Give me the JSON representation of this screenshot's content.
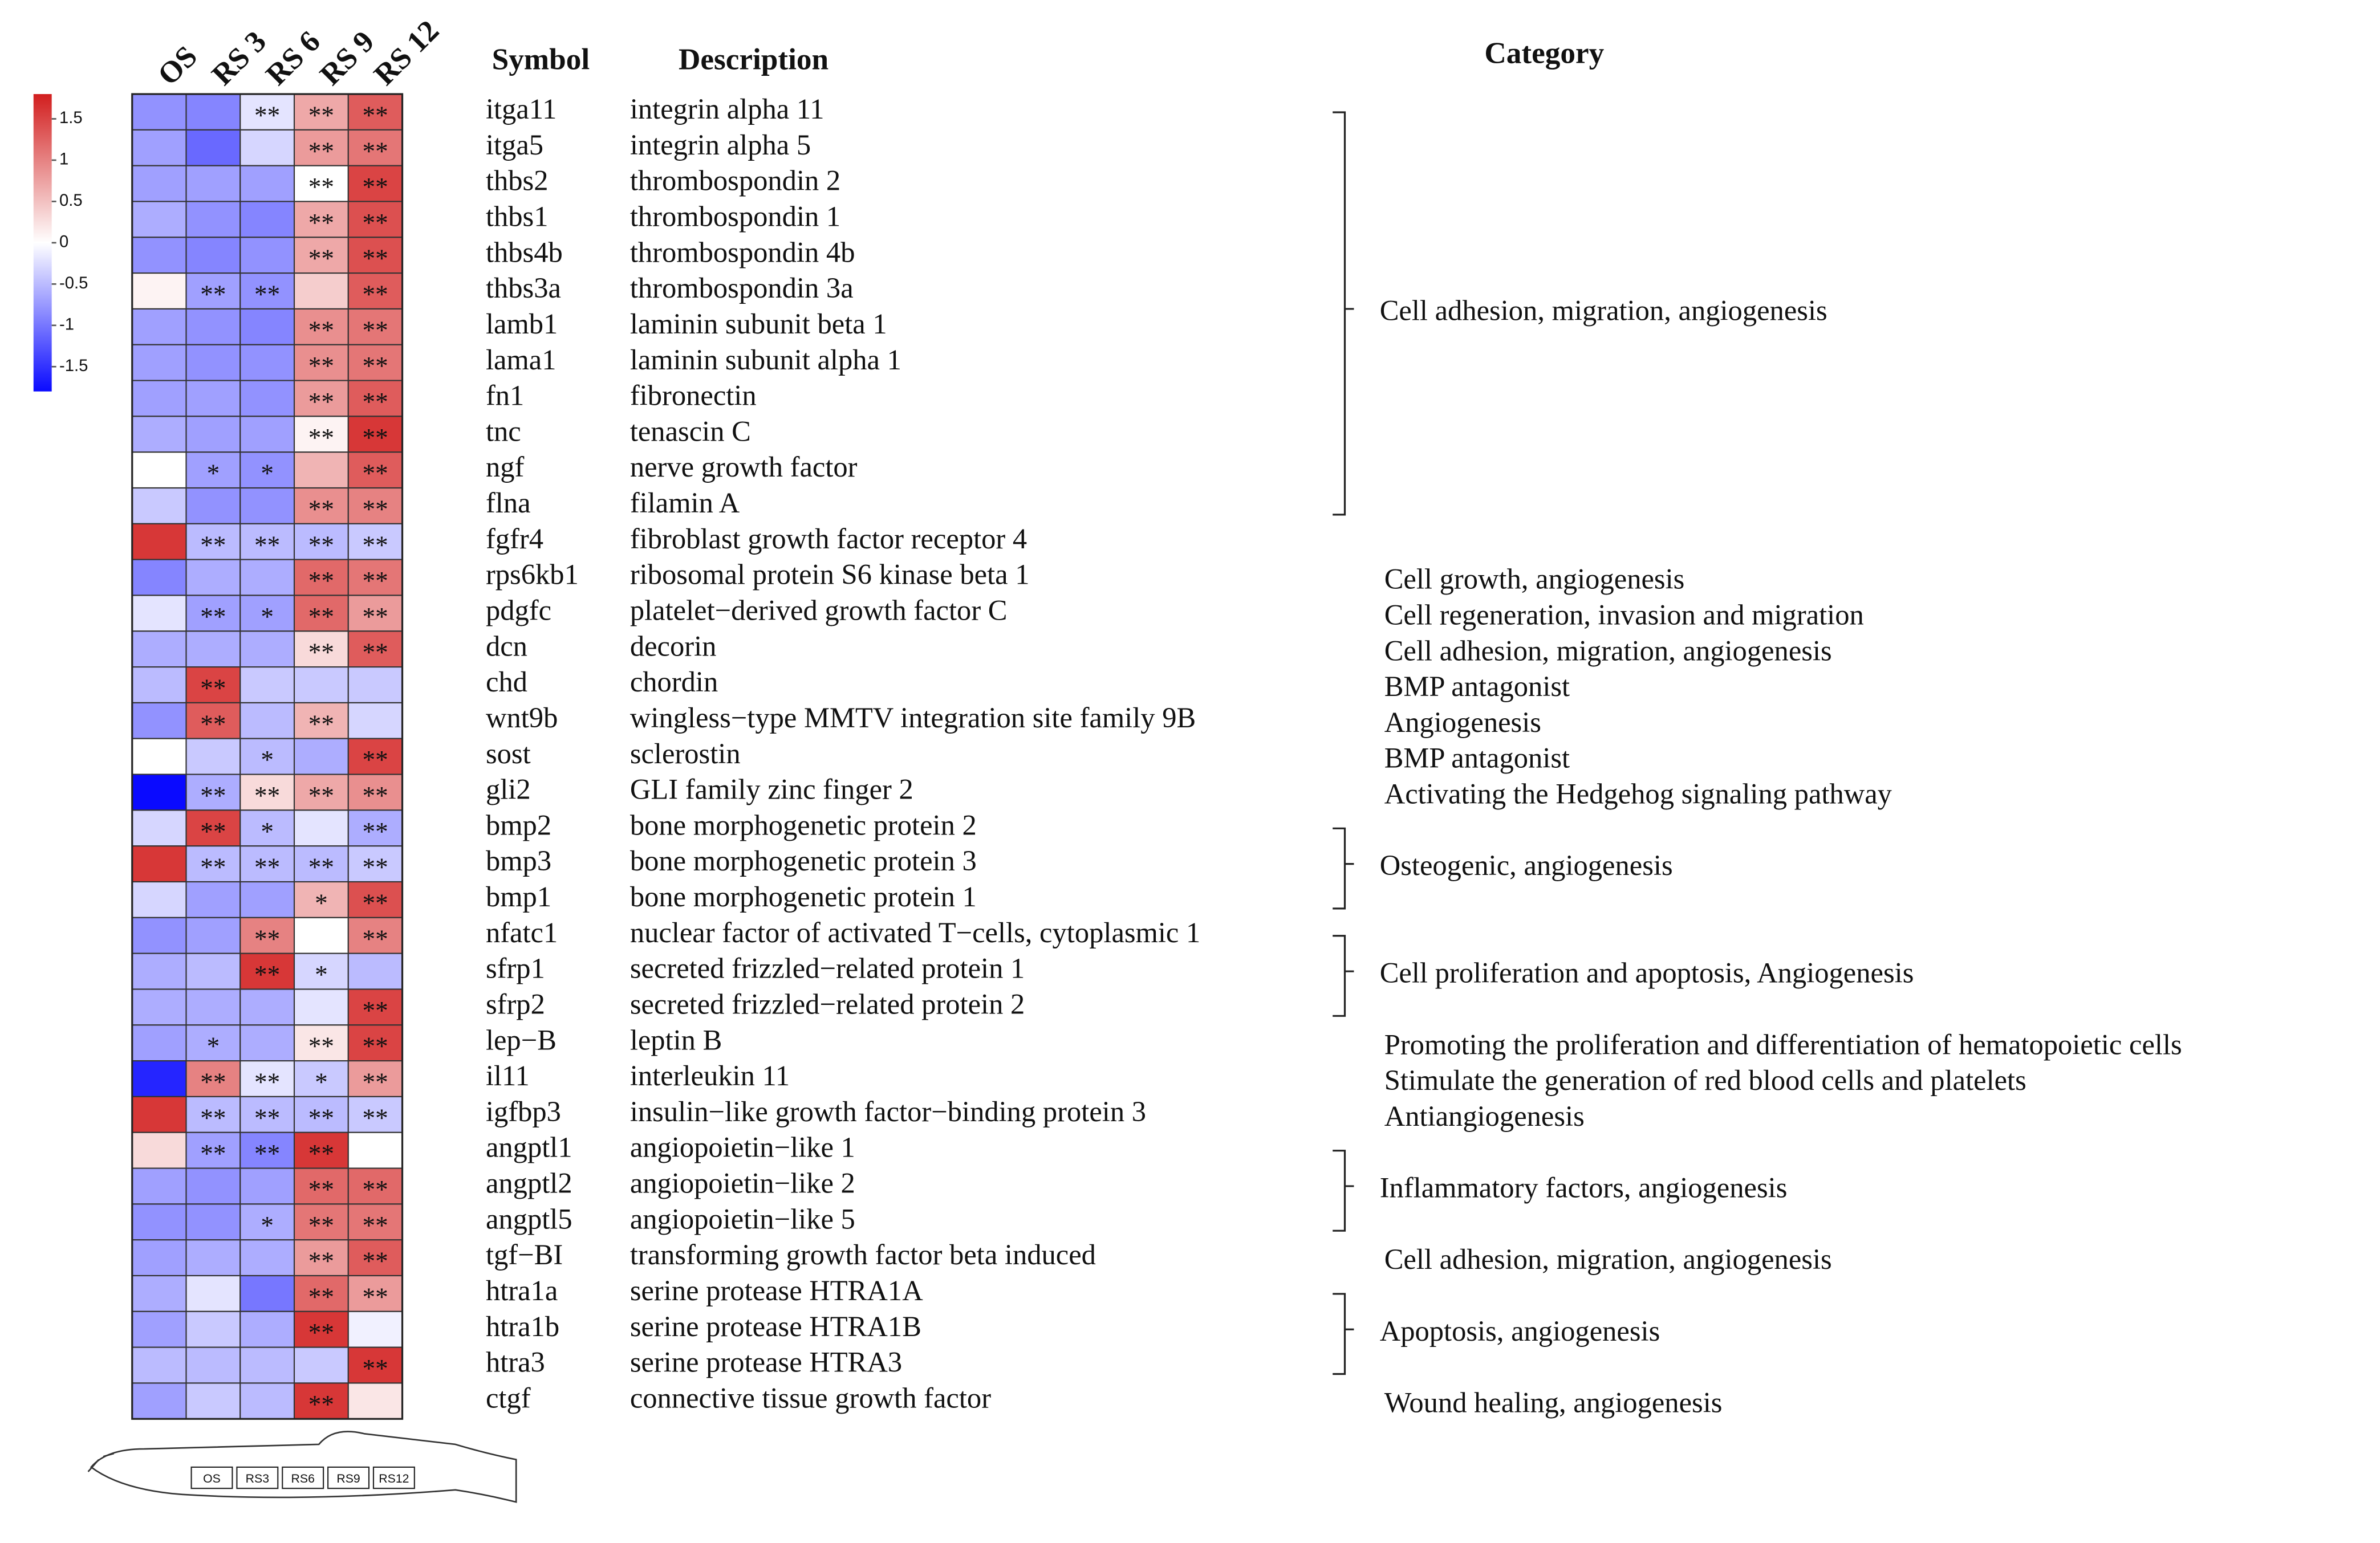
{
  "chart_data": {
    "type": "heatmap",
    "columns": [
      "OS",
      "RS 3",
      "RS 6",
      "RS 9",
      "RS 12"
    ],
    "fish_labels": [
      "OS",
      "RS3",
      "RS6",
      "RS9",
      "RS12"
    ],
    "symbol_header": "Symbol",
    "description_header": "Description",
    "category_header": "Category",
    "rows": [
      "itga11",
      "itga5",
      "thbs2",
      "thbs1",
      "thbs4b",
      "thbs3a",
      "lamb1",
      "lama1",
      "fn1",
      "tnc",
      "ngf",
      "flna",
      "fgfr4",
      "rps6kb1",
      "pdgfc",
      "dcn",
      "chd",
      "wnt9b",
      "sost",
      "gli2",
      "bmp2",
      "bmp3",
      "bmp1",
      "nfatc1",
      "sfrp1",
      "sfrp2",
      "lep−B",
      "il11",
      "igfbp3",
      "angptl1",
      "angptl2",
      "angptl5",
      "tgf−BI",
      "htra1a",
      "htra1b",
      "htra3",
      "ctgf"
    ],
    "descriptions": [
      "integrin alpha 11",
      "integrin alpha 5",
      "thrombospondin 2",
      "thrombospondin 1",
      "thrombospondin 4b",
      "thrombospondin 3a",
      "laminin subunit beta 1",
      "laminin subunit alpha 1",
      "fibronectin",
      "tenascin C",
      "nerve growth factor",
      "filamin A",
      "fibroblast growth factor receptor 4",
      "ribosomal protein S6 kinase beta 1",
      "platelet−derived growth factor C",
      "decorin",
      "chordin",
      "wingless−type MMTV integration site family 9B",
      "sclerostin",
      "GLI family zinc finger 2",
      "bone morphogenetic protein 2",
      "bone morphogenetic protein 3",
      "bone morphogenetic protein 1",
      "nuclear factor of activated T−cells, cytoplasmic 1",
      "secreted frizzled−related protein 1",
      "secreted frizzled−related protein 2",
      "leptin B",
      "interleukin 11",
      "insulin−like growth factor−binding protein 3",
      "angiopoietin−like 1",
      "angiopoietin−like 2",
      "angiopoietin−like 5",
      "transforming growth factor beta induced",
      "serine protease HTRA1A",
      "serine protease HTRA1B",
      "serine protease HTRA3",
      "connective tissue growth factor"
    ],
    "values": [
      [
        -0.8,
        -0.9,
        -0.2,
        0.7,
        1.3
      ],
      [
        -0.7,
        -1.1,
        -0.3,
        0.8,
        1.1
      ],
      [
        -0.7,
        -0.7,
        -0.7,
        0.0,
        1.5
      ],
      [
        -0.6,
        -0.8,
        -0.9,
        0.7,
        1.4
      ],
      [
        -0.8,
        -0.9,
        -0.8,
        0.7,
        1.4
      ],
      [
        0.1,
        -0.7,
        -0.8,
        0.4,
        1.3
      ],
      [
        -0.7,
        -0.8,
        -0.9,
        0.9,
        1.1
      ],
      [
        -0.7,
        -0.8,
        -0.8,
        0.9,
        1.1
      ],
      [
        -0.7,
        -0.7,
        -0.8,
        0.8,
        1.3
      ],
      [
        -0.6,
        -0.7,
        -0.7,
        0.1,
        1.6
      ],
      [
        0.0,
        -0.7,
        -0.8,
        0.6,
        1.3
      ],
      [
        -0.4,
        -0.8,
        -0.8,
        0.9,
        1.0
      ],
      [
        1.6,
        -0.5,
        -0.5,
        -0.5,
        -0.4
      ],
      [
        -0.9,
        -0.6,
        -0.6,
        1.2,
        1.1
      ],
      [
        -0.2,
        -0.7,
        -0.7,
        1.2,
        0.8
      ],
      [
        -0.6,
        -0.6,
        -0.6,
        0.3,
        1.3
      ],
      [
        -0.5,
        1.5,
        -0.4,
        -0.4,
        -0.4
      ],
      [
        -0.8,
        1.3,
        -0.5,
        0.6,
        -0.3
      ],
      [
        0.0,
        -0.4,
        -0.5,
        -0.6,
        1.5
      ],
      [
        -1.8,
        -0.6,
        0.3,
        0.7,
        0.9
      ],
      [
        -0.3,
        1.5,
        -0.5,
        -0.2,
        -0.6
      ],
      [
        1.6,
        -0.5,
        -0.5,
        -0.5,
        -0.4
      ],
      [
        -0.3,
        -0.7,
        -0.7,
        0.6,
        1.4
      ],
      [
        -0.8,
        -0.7,
        1.0,
        0.0,
        1.0
      ],
      [
        -0.6,
        -0.5,
        1.6,
        -0.3,
        -0.5
      ],
      [
        -0.6,
        -0.6,
        -0.6,
        -0.2,
        1.5
      ],
      [
        -0.7,
        -0.6,
        -0.6,
        0.2,
        1.5
      ],
      [
        -1.6,
        1.0,
        -0.2,
        -0.4,
        0.8
      ],
      [
        1.6,
        -0.5,
        -0.5,
        -0.5,
        -0.4
      ],
      [
        0.3,
        -0.7,
        -0.9,
        1.6,
        0.0
      ],
      [
        -0.7,
        -0.8,
        -0.7,
        1.2,
        1.2
      ],
      [
        -0.8,
        -0.8,
        -0.6,
        1.1,
        1.1
      ],
      [
        -0.7,
        -0.6,
        -0.6,
        0.8,
        1.3
      ],
      [
        -0.6,
        -0.2,
        -1.0,
        1.2,
        0.8
      ],
      [
        -0.7,
        -0.4,
        -0.6,
        1.6,
        -0.1
      ],
      [
        -0.5,
        -0.5,
        -0.5,
        -0.4,
        1.6
      ],
      [
        -0.7,
        -0.4,
        -0.5,
        1.6,
        0.2
      ]
    ],
    "labels": [
      [
        null,
        null,
        "**",
        "**",
        "**"
      ],
      [
        null,
        null,
        null,
        "**",
        "**"
      ],
      [
        null,
        null,
        null,
        "**",
        "**"
      ],
      [
        null,
        null,
        null,
        "**",
        "**"
      ],
      [
        null,
        null,
        null,
        "**",
        "**"
      ],
      [
        null,
        "**",
        "**",
        null,
        "**"
      ],
      [
        null,
        null,
        null,
        "**",
        "**"
      ],
      [
        null,
        null,
        null,
        "**",
        "**"
      ],
      [
        null,
        null,
        null,
        "**",
        "**"
      ],
      [
        null,
        null,
        null,
        "**",
        "**"
      ],
      [
        null,
        "*",
        "*",
        null,
        "**"
      ],
      [
        null,
        null,
        null,
        "**",
        "**"
      ],
      [
        null,
        "**",
        "**",
        "**",
        "**"
      ],
      [
        null,
        null,
        null,
        "**",
        "**"
      ],
      [
        null,
        "**",
        "*",
        "**",
        "**"
      ],
      [
        null,
        null,
        null,
        "**",
        "**"
      ],
      [
        null,
        "**",
        null,
        null,
        null
      ],
      [
        null,
        "**",
        null,
        "**",
        null
      ],
      [
        null,
        null,
        "*",
        null,
        "**"
      ],
      [
        null,
        "**",
        "**",
        "**",
        "**"
      ],
      [
        null,
        "**",
        "*",
        null,
        "**"
      ],
      [
        null,
        "**",
        "**",
        "**",
        "**"
      ],
      [
        null,
        null,
        null,
        "*",
        "**"
      ],
      [
        null,
        null,
        "**",
        null,
        "**"
      ],
      [
        null,
        null,
        "**",
        "*",
        null
      ],
      [
        null,
        null,
        null,
        null,
        "**"
      ],
      [
        null,
        "*",
        null,
        "**",
        "**"
      ],
      [
        null,
        "**",
        "**",
        "*",
        "**"
      ],
      [
        null,
        "**",
        "**",
        "**",
        "**"
      ],
      [
        null,
        "**",
        "**",
        "**",
        null
      ],
      [
        null,
        null,
        null,
        "**",
        "**"
      ],
      [
        null,
        null,
        "*",
        "**",
        "**"
      ],
      [
        null,
        null,
        null,
        "**",
        "**"
      ],
      [
        null,
        null,
        null,
        "**",
        "**"
      ],
      [
        null,
        null,
        null,
        "**",
        null
      ],
      [
        null,
        null,
        null,
        null,
        "**"
      ],
      [
        null,
        null,
        null,
        "**",
        null
      ]
    ],
    "zlim": [
      -1.8,
      1.8
    ],
    "zticks": [
      1.5,
      1,
      0.5,
      0,
      -0.5,
      -1,
      -1.5
    ],
    "colors": {
      "low": "#0a0aff",
      "mid": "#ffffff",
      "high": "#d21e1e"
    },
    "categories": [
      {
        "label": "Cell adhesion, migration, angiogenesis",
        "rows": [
          0,
          11
        ]
      },
      {
        "label": "Cell growth, angiogenesis",
        "rows": [
          13,
          13
        ]
      },
      {
        "label": "Cell regeneration, invasion and migration",
        "rows": [
          14,
          14
        ]
      },
      {
        "label": "Cell adhesion, migration, angiogenesis",
        "rows": [
          15,
          15
        ]
      },
      {
        "label": "BMP antagonist",
        "rows": [
          16,
          16
        ]
      },
      {
        "label": "Angiogenesis",
        "rows": [
          17,
          17
        ]
      },
      {
        "label": "BMP antagonist",
        "rows": [
          18,
          18
        ]
      },
      {
        "label": "Activating the Hedgehog signaling pathway",
        "rows": [
          19,
          19
        ]
      },
      {
        "label": "Osteogenic, angiogenesis",
        "rows": [
          20,
          22
        ]
      },
      {
        "label": "Cell proliferation and apoptosis, Angiogenesis",
        "rows": [
          23,
          25
        ]
      },
      {
        "label": "Promoting the proliferation and differentiation of hematopoietic cells",
        "rows": [
          26,
          26
        ]
      },
      {
        "label": "Stimulate the generation of red blood cells and platelets",
        "rows": [
          27,
          27
        ]
      },
      {
        "label": "Antiangiogenesis",
        "rows": [
          28,
          28
        ]
      },
      {
        "label": "Inflammatory factors, angiogenesis",
        "rows": [
          29,
          31
        ]
      },
      {
        "label": "Cell adhesion, migration, angiogenesis",
        "rows": [
          32,
          32
        ]
      },
      {
        "label": "Apoptosis, angiogenesis",
        "rows": [
          33,
          35
        ]
      },
      {
        "label": "Wound healing, angiogenesis",
        "rows": [
          36,
          36
        ]
      }
    ]
  }
}
